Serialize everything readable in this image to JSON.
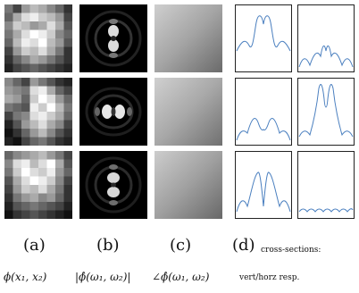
{
  "figure": {
    "columns": [
      {
        "label": "(a)",
        "caption": "ϕ(x₁, x₂)"
      },
      {
        "label": "(b)",
        "caption": "|ϕ̂(ω₁, ω₂)|"
      },
      {
        "label": "(c)",
        "caption": "∠ϕ̂(ω₁, ω₂)"
      },
      {
        "label": "(d)",
        "caption_line1": "cross-sections:",
        "caption_line2": "vert/horz resp."
      }
    ],
    "rows": 3,
    "colors": {
      "curve": "#4a7fbf",
      "frame": "#222222"
    }
  }
}
